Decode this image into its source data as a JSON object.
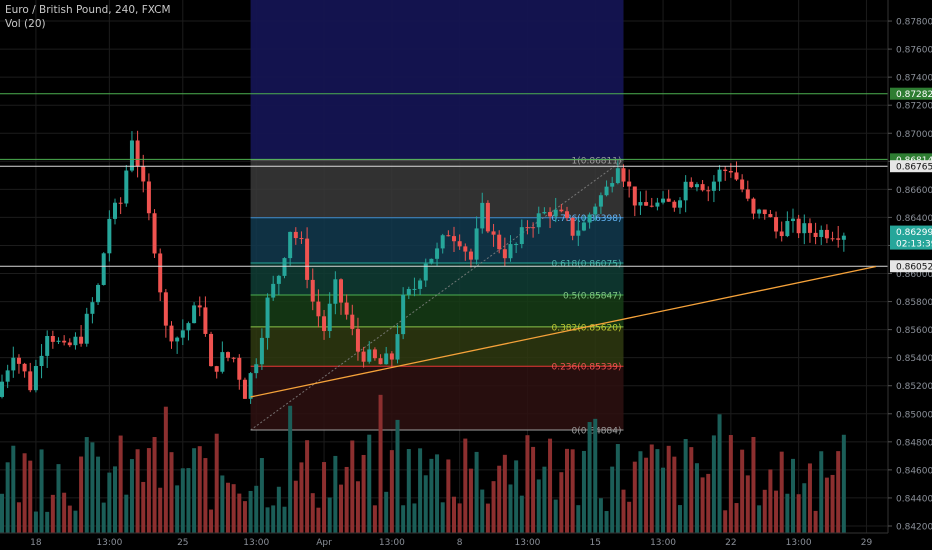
{
  "header": {
    "title": "Euro / British Pound, 240, FXCM",
    "volume_indicator": "Vol (20)"
  },
  "chart_data": {
    "type": "candlestick",
    "symbol": "EURGBP",
    "timeframe": "240",
    "price_axis": {
      "ylim": [
        0.8415,
        0.8795
      ],
      "ticks": [
        "0.84200",
        "0.84400",
        "0.84600",
        "0.84800",
        "0.85000",
        "0.85200",
        "0.85400",
        "0.85600",
        "0.85800",
        "0.86000",
        "0.86200",
        "0.86400",
        "0.86600",
        "0.86800",
        "0.87000",
        "0.87200",
        "0.87400",
        "0.87600",
        "0.87800"
      ]
    },
    "time_axis": {
      "bars": 150,
      "labels": [
        {
          "bar": 6,
          "text": "18"
        },
        {
          "bar": 19,
          "text": "13:00"
        },
        {
          "bar": 32,
          "text": "25"
        },
        {
          "bar": 45,
          "text": "13:00"
        },
        {
          "bar": 57,
          "text": "Apr"
        },
        {
          "bar": 69,
          "text": "13:00"
        },
        {
          "bar": 81,
          "text": "8"
        },
        {
          "bar": 93,
          "text": "13:00"
        },
        {
          "bar": 105,
          "text": "15"
        },
        {
          "bar": 117,
          "text": "13:00"
        },
        {
          "bar": 129,
          "text": "22"
        },
        {
          "bar": 141,
          "text": "13:00"
        },
        {
          "bar": 153,
          "text": "29"
        }
      ]
    },
    "key_points": [
      {
        "bar": 0,
        "price": 0.8512
      },
      {
        "bar": 3,
        "price": 0.8545
      },
      {
        "bar": 6,
        "price": 0.852
      },
      {
        "bar": 9,
        "price": 0.856
      },
      {
        "bar": 12,
        "price": 0.8545
      },
      {
        "bar": 15,
        "price": 0.8555
      },
      {
        "bar": 18,
        "price": 0.859
      },
      {
        "bar": 20,
        "price": 0.864
      },
      {
        "bar": 22,
        "price": 0.865
      },
      {
        "bar": 24,
        "price": 0.8698
      },
      {
        "bar": 26,
        "price": 0.866
      },
      {
        "bar": 28,
        "price": 0.862
      },
      {
        "bar": 30,
        "price": 0.856
      },
      {
        "bar": 32,
        "price": 0.8555
      },
      {
        "bar": 34,
        "price": 0.8565
      },
      {
        "bar": 36,
        "price": 0.858
      },
      {
        "bar": 38,
        "price": 0.853
      },
      {
        "bar": 40,
        "price": 0.854
      },
      {
        "bar": 42,
        "price": 0.854
      },
      {
        "bar": 44,
        "price": 0.8515
      },
      {
        "bar": 46,
        "price": 0.854
      },
      {
        "bar": 48,
        "price": 0.858
      },
      {
        "bar": 50,
        "price": 0.86
      },
      {
        "bar": 52,
        "price": 0.8632
      },
      {
        "bar": 54,
        "price": 0.862
      },
      {
        "bar": 56,
        "price": 0.858
      },
      {
        "bar": 58,
        "price": 0.856
      },
      {
        "bar": 60,
        "price": 0.859
      },
      {
        "bar": 62,
        "price": 0.857
      },
      {
        "bar": 64,
        "price": 0.8545
      },
      {
        "bar": 66,
        "price": 0.854
      },
      {
        "bar": 68,
        "price": 0.8535
      },
      {
        "bar": 70,
        "price": 0.854
      },
      {
        "bar": 72,
        "price": 0.858
      },
      {
        "bar": 74,
        "price": 0.859
      },
      {
        "bar": 76,
        "price": 0.861
      },
      {
        "bar": 78,
        "price": 0.8615
      },
      {
        "bar": 80,
        "price": 0.863
      },
      {
        "bar": 82,
        "price": 0.8625
      },
      {
        "bar": 84,
        "price": 0.861
      },
      {
        "bar": 86,
        "price": 0.8645
      },
      {
        "bar": 88,
        "price": 0.8625
      },
      {
        "bar": 90,
        "price": 0.8615
      },
      {
        "bar": 92,
        "price": 0.862
      },
      {
        "bar": 94,
        "price": 0.8635
      },
      {
        "bar": 96,
        "price": 0.864
      },
      {
        "bar": 98,
        "price": 0.8645
      },
      {
        "bar": 100,
        "price": 0.864
      },
      {
        "bar": 102,
        "price": 0.863
      },
      {
        "bar": 104,
        "price": 0.8635
      },
      {
        "bar": 106,
        "price": 0.865
      },
      {
        "bar": 108,
        "price": 0.866
      },
      {
        "bar": 110,
        "price": 0.8681
      },
      {
        "bar": 112,
        "price": 0.866
      },
      {
        "bar": 114,
        "price": 0.8645
      },
      {
        "bar": 116,
        "price": 0.865
      },
      {
        "bar": 118,
        "price": 0.8648
      },
      {
        "bar": 120,
        "price": 0.865
      },
      {
        "bar": 122,
        "price": 0.8665
      },
      {
        "bar": 124,
        "price": 0.8668
      },
      {
        "bar": 126,
        "price": 0.866
      },
      {
        "bar": 128,
        "price": 0.8672
      },
      {
        "bar": 130,
        "price": 0.8675
      },
      {
        "bar": 132,
        "price": 0.866
      },
      {
        "bar": 134,
        "price": 0.864
      },
      {
        "bar": 136,
        "price": 0.8645
      },
      {
        "bar": 138,
        "price": 0.863
      },
      {
        "bar": 140,
        "price": 0.8635
      },
      {
        "bar": 142,
        "price": 0.8632
      },
      {
        "bar": 144,
        "price": 0.863
      },
      {
        "bar": 146,
        "price": 0.863
      },
      {
        "bar": 149,
        "price": 0.863
      }
    ],
    "horizontal_lines": [
      {
        "price": 0.87282,
        "label": "0.87282",
        "color": "#4caf50"
      },
      {
        "price": 0.86814,
        "label": "0.86814",
        "color": "#4caf50"
      },
      {
        "price": 0.86765,
        "label": "0.86765",
        "color": "#d9d9d9"
      },
      {
        "price": 0.86052,
        "label": "0.86052",
        "color": "#d9d9d9"
      }
    ],
    "price_tags": [
      {
        "price": 0.86299,
        "label": "0.86299",
        "timer": "02:13:39",
        "color": "#26a69a"
      }
    ],
    "trendline": {
      "from": {
        "bar": 44,
        "price": 0.8512
      },
      "to": {
        "bar": 155,
        "price": 0.8605
      },
      "color": "#f5a23a"
    },
    "fibonacci": {
      "from_bar": 44,
      "to_bar": 110,
      "anchor_low_bar": 44,
      "anchor_high_bar": 110,
      "levels": [
        {
          "ratio": 1,
          "price": 0.86811,
          "label": "1(0.86811)",
          "line_color": "#9e9e9e",
          "fill": "#3a3a3a",
          "text_color": "#9e9e9e"
        },
        {
          "ratio": 0.786,
          "price": 0.86398,
          "label": "0.786(0.86398)",
          "line_color": "#3f8fd2",
          "fill": "#123a4f",
          "text_color": "#64b5f6"
        },
        {
          "ratio": 0.618,
          "price": 0.86075,
          "label": "0.618(0.86075)",
          "line_color": "#26a69a",
          "fill": "#0f3d35",
          "text_color": "#4db6ac"
        },
        {
          "ratio": 0.5,
          "price": 0.85847,
          "label": "0.5(0.85847)",
          "line_color": "#4caf50",
          "fill": "#163d16",
          "text_color": "#81c784"
        },
        {
          "ratio": 0.382,
          "price": 0.8562,
          "label": "0.382(0.85620)",
          "line_color": "#8bc34a",
          "fill": "#2f3a10",
          "text_color": "#c0ca33"
        },
        {
          "ratio": 0.236,
          "price": 0.85339,
          "label": "0.236(0.85339)",
          "line_color": "#e53935",
          "fill": "#3d1414",
          "text_color": "#ef5350"
        },
        {
          "ratio": 0,
          "price": 0.84884,
          "label": "0(0.84884)",
          "line_color": "#9e9e9e",
          "fill": null,
          "text_color": "#9e9e9e"
        }
      ]
    },
    "date_range_box": {
      "from_bar": 44,
      "to_bar": 110,
      "top_price": 0.8795,
      "bottom_price": 0.8681,
      "color": "#141452"
    },
    "colors": {
      "up": "#26a69a",
      "down": "#ef5350",
      "vol_up": "#1b5e58",
      "vol_down": "#8c2f2f",
      "grid": "#1c1c1c",
      "axis_text": "#8a8f98"
    }
  }
}
